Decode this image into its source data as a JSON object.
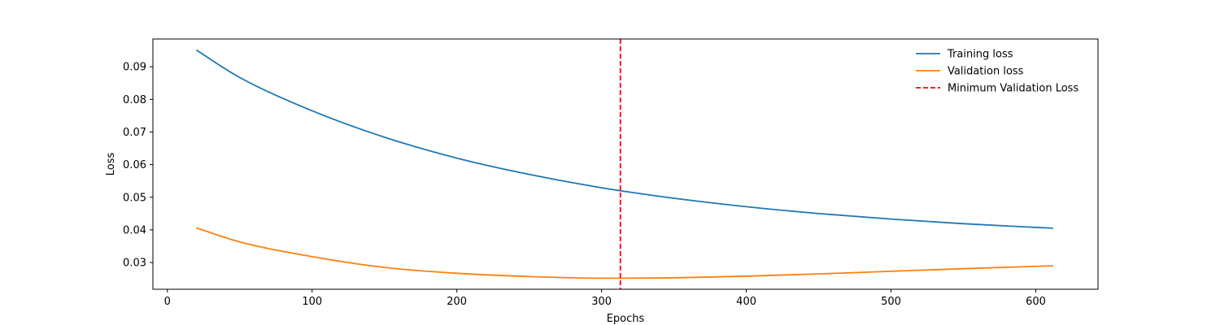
{
  "chart_data": {
    "type": "line",
    "title": "",
    "xlabel": "Epochs",
    "ylabel": "Loss",
    "xlim": [
      -10,
      643
    ],
    "ylim": [
      0.0218,
      0.0985
    ],
    "xticks": [
      0,
      100,
      200,
      300,
      400,
      500,
      600
    ],
    "yticks": [
      0.03,
      0.04,
      0.05,
      0.06,
      0.07,
      0.08,
      0.09
    ],
    "legend_position": "top-right",
    "grid": false,
    "series": [
      {
        "name": "Training loss",
        "color": "#1f77b4",
        "x": [
          20,
          50,
          100,
          150,
          200,
          250,
          300,
          313,
          350,
          400,
          450,
          500,
          550,
          612
        ],
        "y": [
          0.0951,
          0.0867,
          0.0765,
          0.0684,
          0.062,
          0.057,
          0.0529,
          0.052,
          0.0497,
          0.0471,
          0.045,
          0.0433,
          0.0419,
          0.0405
        ]
      },
      {
        "name": "Validation loss",
        "color": "#ff7f0e",
        "x": [
          20,
          50,
          100,
          150,
          200,
          250,
          300,
          313,
          350,
          400,
          450,
          500,
          550,
          612
        ],
        "y": [
          0.0406,
          0.0363,
          0.0318,
          0.0285,
          0.0267,
          0.0257,
          0.0252,
          0.0252,
          0.0253,
          0.0258,
          0.0265,
          0.0273,
          0.0281,
          0.029
        ]
      }
    ],
    "markers": [
      {
        "name": "Minimum Validation Loss",
        "type": "vline",
        "x": 313,
        "color": "#ff0000",
        "style": "dashed"
      }
    ]
  }
}
